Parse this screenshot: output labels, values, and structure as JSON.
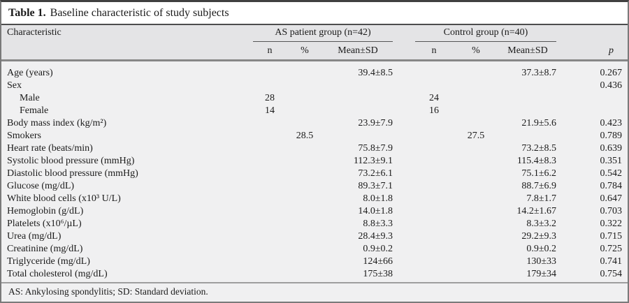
{
  "title": {
    "label": "Table 1.",
    "text": "Baseline characteristic of study subjects"
  },
  "header": {
    "characteristic": "Characteristic",
    "groups": [
      {
        "label": "AS patient group (n=42)"
      },
      {
        "label": "Control group (n=40)"
      }
    ],
    "subcolumns": [
      "n",
      "%",
      "Mean±SD"
    ],
    "p_label": "p"
  },
  "rows": [
    {
      "label": "Age (years)",
      "indent": false,
      "as_n": "",
      "as_pct": "",
      "as_mean": "39.4±8.5",
      "c_n": "",
      "c_pct": "",
      "c_mean": "37.3±8.7",
      "p": "0.267"
    },
    {
      "label": "Sex",
      "indent": false,
      "as_n": "",
      "as_pct": "",
      "as_mean": "",
      "c_n": "",
      "c_pct": "",
      "c_mean": "",
      "p": "0.436"
    },
    {
      "label": "Male",
      "indent": true,
      "as_n": "28",
      "as_pct": "",
      "as_mean": "",
      "c_n": "24",
      "c_pct": "",
      "c_mean": "",
      "p": ""
    },
    {
      "label": "Female",
      "indent": true,
      "as_n": "14",
      "as_pct": "",
      "as_mean": "",
      "c_n": "16",
      "c_pct": "",
      "c_mean": "",
      "p": ""
    },
    {
      "label": "Body mass index (kg/m²)",
      "indent": false,
      "as_n": "",
      "as_pct": "",
      "as_mean": "23.9±7.9",
      "c_n": "",
      "c_pct": "",
      "c_mean": "21.9±5.6",
      "p": "0.423"
    },
    {
      "label": "Smokers",
      "indent": false,
      "as_n": "",
      "as_pct": "28.5",
      "as_mean": "",
      "c_n": "",
      "c_pct": "27.5",
      "c_mean": "",
      "p": "0.789"
    },
    {
      "label": "Heart rate (beats/min)",
      "indent": false,
      "as_n": "",
      "as_pct": "",
      "as_mean": "75.8±7.9",
      "c_n": "",
      "c_pct": "",
      "c_mean": "73.2±8.5",
      "p": "0.639"
    },
    {
      "label": "Systolic blood pressure (mmHg)",
      "indent": false,
      "as_n": "",
      "as_pct": "",
      "as_mean": "112.3±9.1",
      "c_n": "",
      "c_pct": "",
      "c_mean": "115.4±8.3",
      "p": "0.351"
    },
    {
      "label": "Diastolic blood pressure (mmHg)",
      "indent": false,
      "as_n": "",
      "as_pct": "",
      "as_mean": "73.2±6.1",
      "c_n": "",
      "c_pct": "",
      "c_mean": "75.1±6.2",
      "p": "0.542"
    },
    {
      "label": "Glucose (mg/dL)",
      "indent": false,
      "as_n": "",
      "as_pct": "",
      "as_mean": "89.3±7.1",
      "c_n": "",
      "c_pct": "",
      "c_mean": "88.7±6.9",
      "p": "0.784"
    },
    {
      "label": "White blood cells (x10³ U/L)",
      "indent": false,
      "as_n": "",
      "as_pct": "",
      "as_mean": "8.0±1.8",
      "c_n": "",
      "c_pct": "",
      "c_mean": "7.8±1.7",
      "p": "0.647"
    },
    {
      "label": "Hemoglobin (g/dL)",
      "indent": false,
      "as_n": "",
      "as_pct": "",
      "as_mean": "14.0±1.8",
      "c_n": "",
      "c_pct": "",
      "c_mean": "14.2±1.67",
      "p": "0.703"
    },
    {
      "label": "Platelets (x10⁶/µL)",
      "indent": false,
      "as_n": "",
      "as_pct": "",
      "as_mean": "8.8±3.3",
      "c_n": "",
      "c_pct": "",
      "c_mean": "8.3±3.2",
      "p": "0.322"
    },
    {
      "label": "Urea (mg/dL)",
      "indent": false,
      "as_n": "",
      "as_pct": "",
      "as_mean": "28.4±9.3",
      "c_n": "",
      "c_pct": "",
      "c_mean": "29.2±9.3",
      "p": "0.715"
    },
    {
      "label": "Creatinine (mg/dL)",
      "indent": false,
      "as_n": "",
      "as_pct": "",
      "as_mean": "0.9±0.2",
      "c_n": "",
      "c_pct": "",
      "c_mean": "0.9±0.2",
      "p": "0.725"
    },
    {
      "label": "Triglyceride (mg/dL)",
      "indent": false,
      "as_n": "",
      "as_pct": "",
      "as_mean": "124±66",
      "c_n": "",
      "c_pct": "",
      "c_mean": "130±33",
      "p": "0.741"
    },
    {
      "label": "Total cholesterol (mg/dL)",
      "indent": false,
      "as_n": "",
      "as_pct": "",
      "as_mean": "175±38",
      "c_n": "",
      "c_pct": "",
      "c_mean": "179±34",
      "p": "0.754"
    }
  ],
  "footnote": "AS: Ankylosing spondylitis; SD: Standard deviation.",
  "colors": {
    "header_bg": "#e4e4e6",
    "body_bg": "#f0f0f1",
    "title_bg": "#ffffff",
    "rule_dark": "#4d4d4d",
    "rule_mid": "#878787",
    "rule_light": "#9e9e9e",
    "text": "#1a1a1a"
  }
}
